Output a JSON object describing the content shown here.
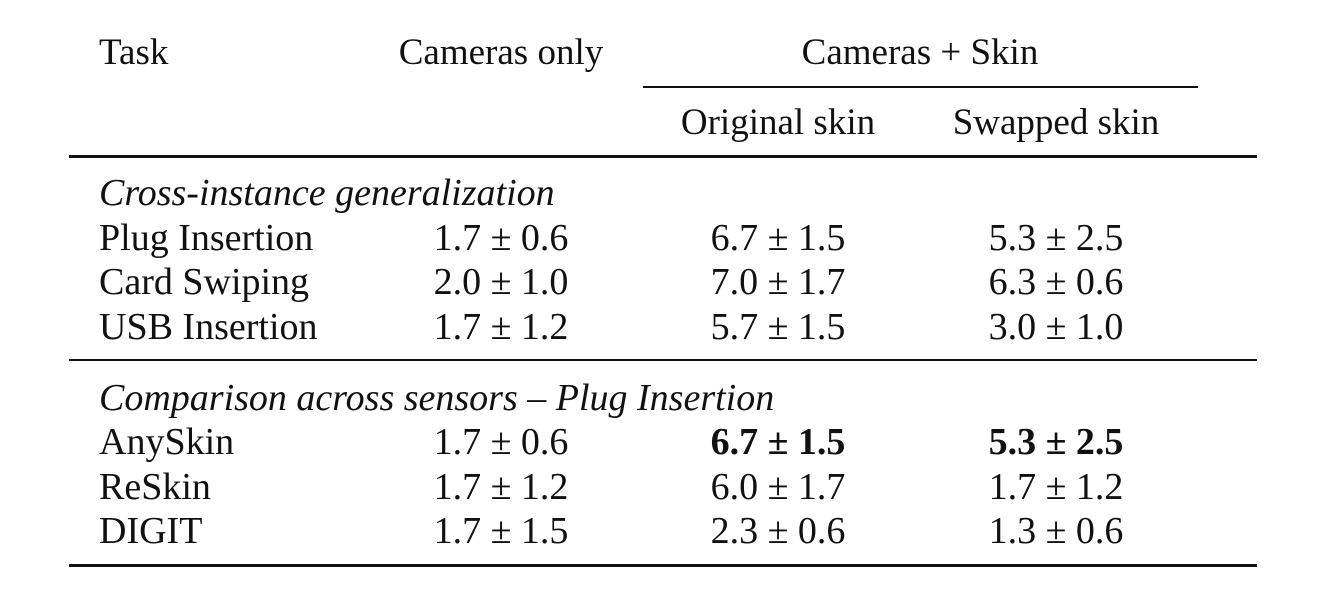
{
  "table": {
    "header": {
      "task": "Task",
      "cameras_only": "Cameras only",
      "cameras_skin": "Cameras + Skin",
      "original_skin": "Original skin",
      "swapped_skin": "Swapped skin"
    },
    "sections": [
      {
        "title": "Cross-instance generalization",
        "rows": [
          {
            "task": "Plug Insertion",
            "cameras_only": "1.7 ± 0.6",
            "original_skin": "6.7 ± 1.5",
            "swapped_skin": "5.3 ± 2.5"
          },
          {
            "task": "Card Swiping",
            "cameras_only": "2.0 ± 1.0",
            "original_skin": "7.0 ± 1.7",
            "swapped_skin": "6.3 ± 0.6"
          },
          {
            "task": "USB Insertion",
            "cameras_only": "1.7 ± 1.2",
            "original_skin": "5.7 ± 1.5",
            "swapped_skin": "3.0 ± 1.0"
          }
        ]
      },
      {
        "title": "Comparison across sensors – Plug Insertion",
        "rows": [
          {
            "task": "AnySkin",
            "cameras_only": "1.7 ± 0.6",
            "original_skin": "6.7 ± 1.5",
            "swapped_skin": "5.3 ± 2.5"
          },
          {
            "task": "ReSkin",
            "cameras_only": "1.7 ± 1.2",
            "original_skin": "6.0 ± 1.7",
            "swapped_skin": "1.7 ± 1.2"
          },
          {
            "task": "DIGIT",
            "cameras_only": "1.7 ± 1.5",
            "original_skin": "2.3 ± 0.6",
            "swapped_skin": "1.3 ± 0.6"
          }
        ]
      }
    ]
  }
}
